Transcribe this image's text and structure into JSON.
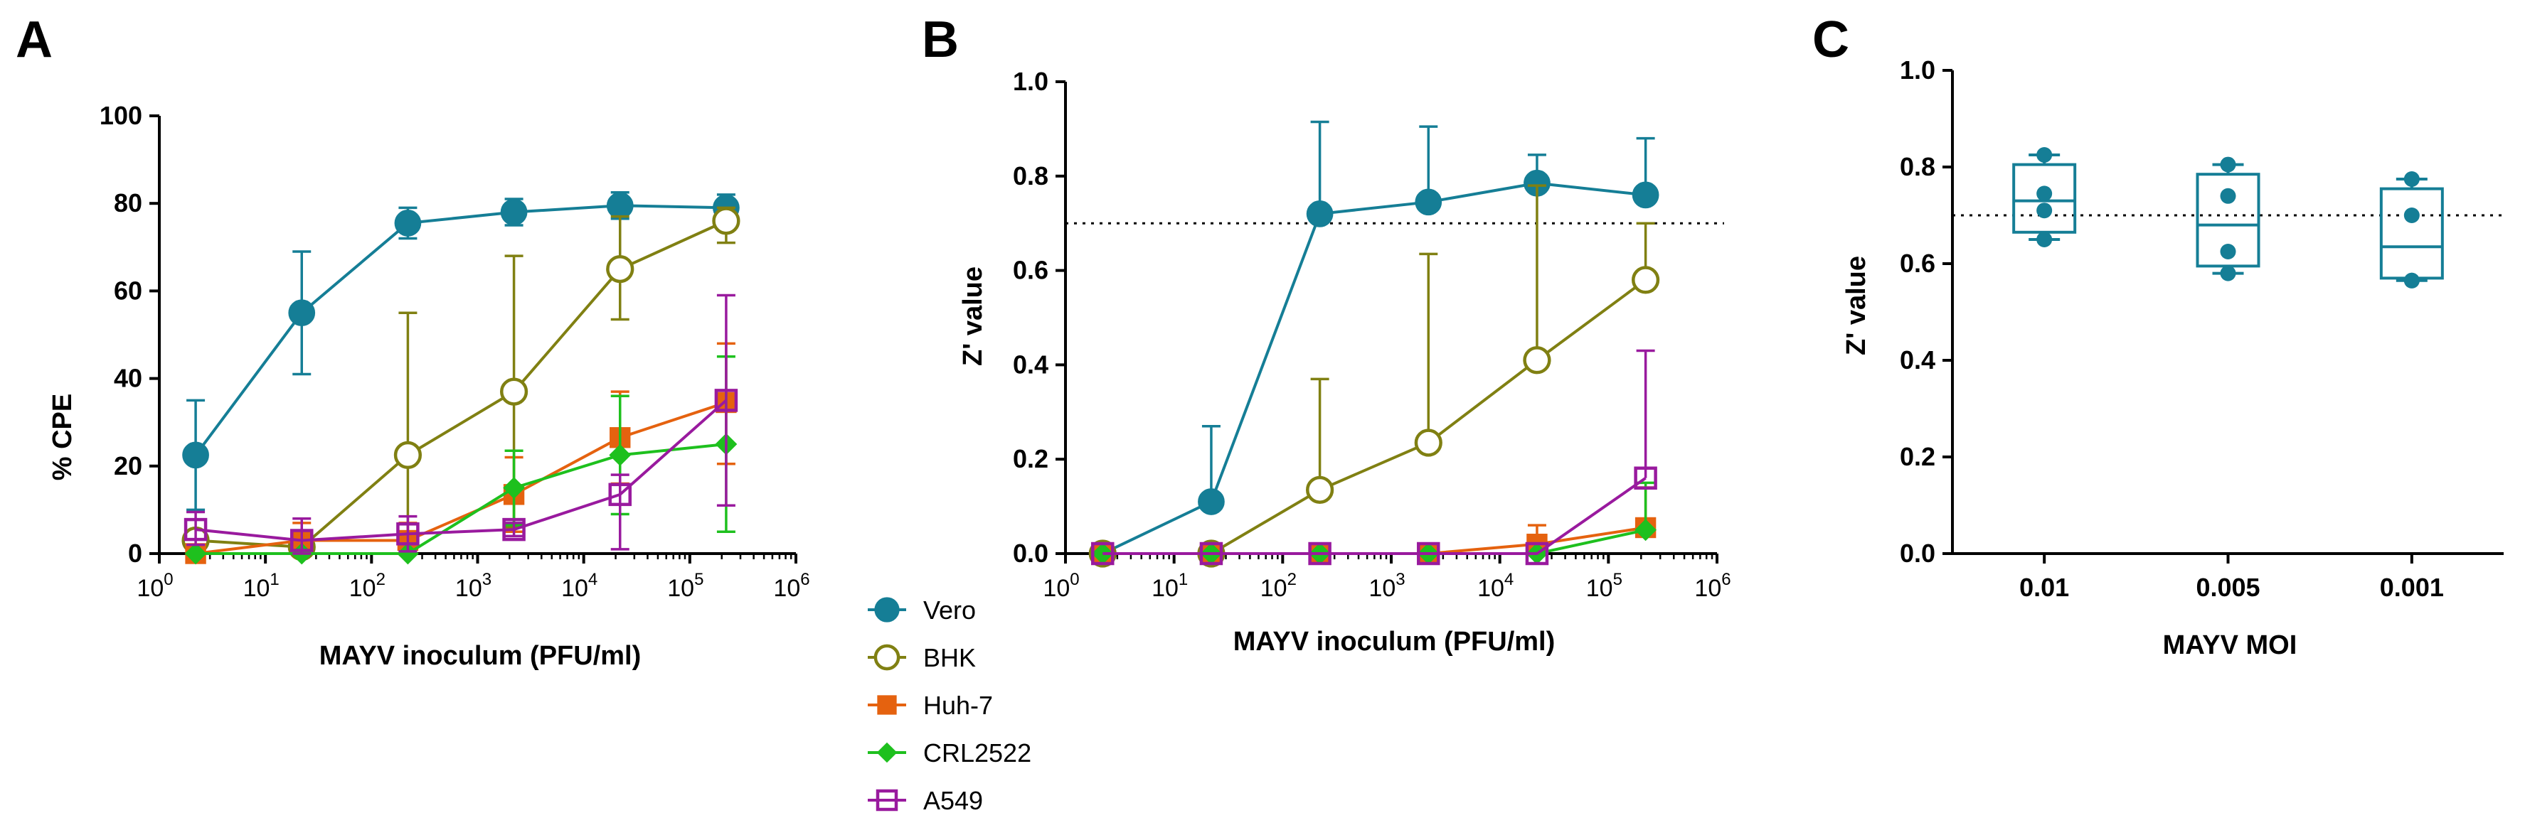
{
  "chart_data": [
    {
      "panel": "A",
      "type": "line",
      "xscale": "log",
      "xlim_exp": [
        0,
        6
      ],
      "xlabel": "MAYV inoculum (PFU/ml)",
      "ylabel": "% CPE",
      "ylim": [
        0,
        100
      ],
      "yticks": [
        0,
        20,
        40,
        60,
        80,
        100
      ],
      "x": [
        2.2,
        22,
        220,
        2200,
        22000,
        220000
      ],
      "series": [
        {
          "name": "Vero",
          "values": [
            22.5,
            55,
            75.5,
            78,
            79.5,
            79
          ],
          "err_hi": [
            35,
            69,
            79,
            81,
            82.5,
            82
          ],
          "err_lo": [
            10,
            41,
            72,
            75,
            76.5,
            76
          ]
        },
        {
          "name": "BHK",
          "values": [
            3,
            1.5,
            22.5,
            37,
            65,
            76
          ],
          "err_hi": [
            5,
            3,
            55,
            68,
            77,
            79
          ],
          "err_lo": [
            1,
            0,
            0,
            6,
            53.5,
            71
          ]
        },
        {
          "name": "Huh-7",
          "values": [
            0,
            3,
            3,
            13.5,
            26.5,
            34.5
          ],
          "err_hi": [
            0,
            7,
            7,
            22,
            37,
            48
          ],
          "err_lo": [
            0,
            0,
            0,
            5,
            16,
            20.5
          ]
        },
        {
          "name": "CRL2522",
          "values": [
            0,
            0,
            0,
            15,
            22.5,
            25
          ],
          "err_hi": [
            0,
            0,
            0,
            23.5,
            36,
            45
          ],
          "err_lo": [
            0,
            0,
            0,
            6.5,
            9,
            5
          ]
        },
        {
          "name": "A549",
          "values": [
            5.5,
            3,
            4.5,
            5.5,
            13.5,
            35
          ],
          "err_hi": [
            9.5,
            8,
            8.5,
            7,
            18,
            59
          ],
          "err_lo": [
            2,
            0,
            0.5,
            4,
            1,
            11
          ]
        }
      ]
    },
    {
      "panel": "B",
      "type": "line",
      "xscale": "log",
      "xlim_exp": [
        0,
        6
      ],
      "xlabel": "MAYV inoculum (PFU/ml)",
      "ylabel": "Z' value",
      "ylim": [
        0,
        1.0
      ],
      "yticks": [
        "0.0",
        "0.2",
        "0.4",
        "0.6",
        "0.8",
        "1.0"
      ],
      "threshold": 0.7,
      "x": [
        2.2,
        22,
        220,
        2200,
        22000,
        220000
      ],
      "series": [
        {
          "name": "Vero",
          "values": [
            0,
            0.11,
            0.72,
            0.745,
            0.785,
            0.76
          ],
          "err_hi": [
            0,
            0.27,
            0.915,
            0.905,
            0.845,
            0.88
          ]
        },
        {
          "name": "BHK",
          "values": [
            0,
            0,
            0.135,
            0.235,
            0.41,
            0.58
          ],
          "err_hi": [
            0,
            0,
            0.37,
            0.635,
            0.78,
            0.7
          ]
        },
        {
          "name": "Huh-7",
          "values": [
            0,
            0,
            0,
            0,
            0.02,
            0.055
          ],
          "err_hi": [
            0,
            0,
            0,
            0,
            0.06,
            0.14
          ]
        },
        {
          "name": "CRL2522",
          "values": [
            0,
            0,
            0,
            0,
            0,
            0.05
          ],
          "err_hi": [
            0,
            0,
            0,
            0,
            0,
            0.15
          ]
        },
        {
          "name": "A549",
          "values": [
            0,
            0,
            0,
            0,
            0,
            0.16
          ],
          "err_hi": [
            0,
            0,
            0,
            0,
            0,
            0.43
          ]
        }
      ]
    },
    {
      "panel": "C",
      "type": "box",
      "xlabel": "MAYV MOI",
      "ylabel": "Z' value",
      "ylim": [
        0,
        1.0
      ],
      "yticks": [
        "0.0",
        "0.2",
        "0.4",
        "0.6",
        "0.8",
        "1.0"
      ],
      "threshold": 0.7,
      "categories": [
        "0.01",
        "0.005",
        "0.001"
      ],
      "boxes": [
        {
          "min": 0.65,
          "q1": 0.665,
          "median": 0.73,
          "q3": 0.805,
          "max": 0.825,
          "points": [
            0.825,
            0.745,
            0.71,
            0.65
          ]
        },
        {
          "min": 0.58,
          "q1": 0.595,
          "median": 0.68,
          "q3": 0.785,
          "max": 0.805,
          "points": [
            0.805,
            0.74,
            0.625,
            0.58
          ]
        },
        {
          "min": 0.565,
          "q1": 0.57,
          "median": 0.635,
          "q3": 0.755,
          "max": 0.775,
          "points": [
            0.775,
            0.7,
            0.565,
            0.565
          ]
        }
      ]
    }
  ],
  "panel_labels": [
    "A",
    "B",
    "C"
  ],
  "legend": [
    {
      "name": "Vero",
      "color": "#157e96",
      "marker": "circle-filled"
    },
    {
      "name": "BHK",
      "color": "#808012",
      "marker": "circle-open"
    },
    {
      "name": "Huh-7",
      "color": "#e5620f",
      "marker": "square-filled"
    },
    {
      "name": "CRL2522",
      "color": "#1ec01e",
      "marker": "diamond-filled"
    },
    {
      "name": "A549",
      "color": "#991a9e",
      "marker": "square-open"
    }
  ],
  "box_color": "#157e96",
  "tick_exponents": [
    "0",
    "1",
    "2",
    "3",
    "4",
    "5",
    "6"
  ]
}
